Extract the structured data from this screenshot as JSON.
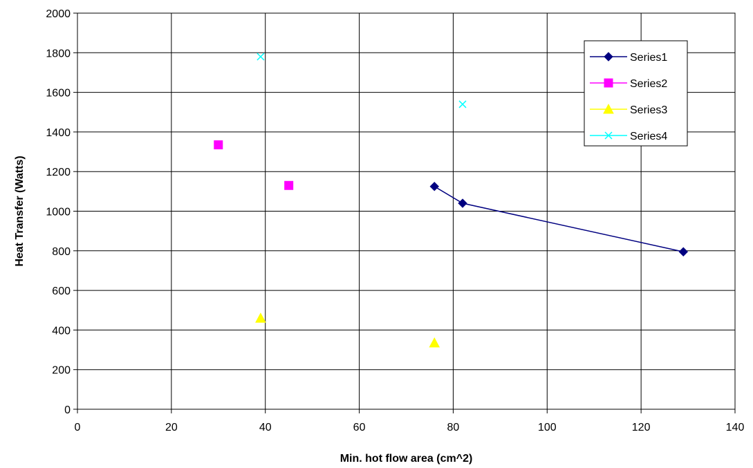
{
  "chart_data": {
    "type": "scatter",
    "title": "",
    "xlabel": "Min. hot flow area (cm^2)",
    "ylabel": "Heat Transfer (Watts)",
    "xlim": [
      0,
      140
    ],
    "ylim": [
      0,
      2000
    ],
    "xticks": [
      "0",
      "20",
      "40",
      "60",
      "80",
      "100",
      "120",
      "140"
    ],
    "yticks": [
      "0",
      "200",
      "400",
      "600",
      "800",
      "1000",
      "1200",
      "1400",
      "1600",
      "1800",
      "2000"
    ],
    "grid": true,
    "legend_position": "top-right",
    "series": [
      {
        "name": "Series1",
        "color": "#000080",
        "marker": "diamond",
        "line": true,
        "points": [
          [
            76,
            1125
          ],
          [
            82,
            1040
          ],
          [
            129,
            795
          ]
        ]
      },
      {
        "name": "Series2",
        "color": "#ff00ff",
        "marker": "square",
        "line": false,
        "points": [
          [
            30,
            1335
          ],
          [
            45,
            1130
          ]
        ]
      },
      {
        "name": "Series3",
        "color": "#ffff00",
        "marker": "triangle",
        "line": false,
        "points": [
          [
            39,
            460
          ],
          [
            76,
            335
          ]
        ]
      },
      {
        "name": "Series4",
        "color": "#00ffff",
        "marker": "x",
        "line": false,
        "points": [
          [
            39,
            1780
          ],
          [
            82,
            1540
          ]
        ]
      }
    ]
  }
}
